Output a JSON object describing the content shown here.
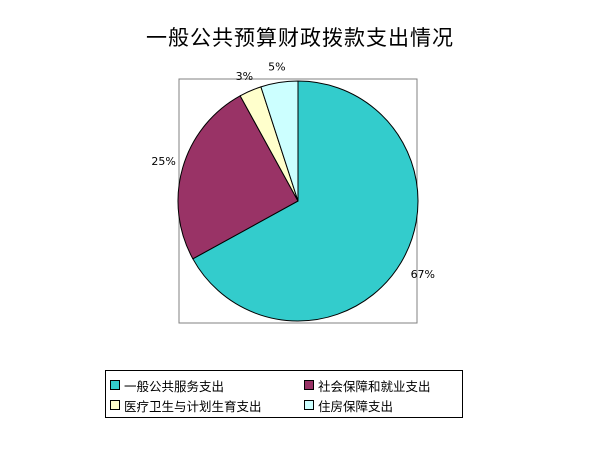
{
  "chart_data": {
    "type": "pie",
    "title": "一般公共预算财政拨款支出情况",
    "categories": [
      "一般公共服务支出",
      "社会保障和就业支出",
      "医疗卫生与计划生育支出",
      "住房保障支出"
    ],
    "values": [
      67,
      25,
      3,
      5
    ],
    "data_labels": [
      "67%",
      "25%",
      "3%",
      "5%"
    ],
    "colors": [
      "#33CCCC",
      "#993366",
      "#FFFFCC",
      "#CCFFFF"
    ],
    "legend": "bottom",
    "start_angle_deg": 90,
    "direction": "clockwise"
  }
}
